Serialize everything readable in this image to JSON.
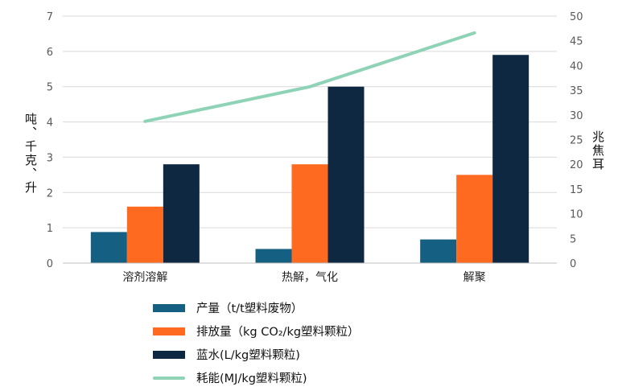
{
  "chart_data": {
    "type": "bar",
    "categories": [
      "溶剂溶解",
      "热解，气化",
      "解聚"
    ],
    "series": [
      {
        "name": "产量（t/t塑料废物）",
        "values": [
          0.88,
          0.4,
          0.67
        ],
        "color": "#156082",
        "axis": "left",
        "kind": "bar"
      },
      {
        "name": "排放量（kg CO₂/kg塑料颗粒）",
        "values": [
          1.6,
          2.8,
          2.5
        ],
        "color": "#FF6A21",
        "axis": "left",
        "kind": "bar"
      },
      {
        "name": "蓝水(L/kg塑料颗粒)",
        "values": [
          2.8,
          5.0,
          5.9
        ],
        "color": "#0D2840",
        "axis": "left",
        "kind": "bar"
      },
      {
        "name": "耗能(MJ/kg塑料颗粒)",
        "values": [
          28.7,
          35.7,
          46.6
        ],
        "color": "#8FD3B6",
        "axis": "right",
        "kind": "line"
      }
    ],
    "ylabel": "吨、千克、升",
    "y2label": "兆焦耳",
    "ylim": [
      0,
      7
    ],
    "y2lim": [
      0,
      50
    ],
    "yticks": [
      "0",
      "1",
      "2",
      "3",
      "4",
      "5",
      "6",
      "7"
    ],
    "y2ticks": [
      "0",
      "5",
      "10",
      "15",
      "20",
      "25",
      "30",
      "35",
      "40",
      "45",
      "50"
    ],
    "grid": true,
    "legend": "bottom"
  }
}
